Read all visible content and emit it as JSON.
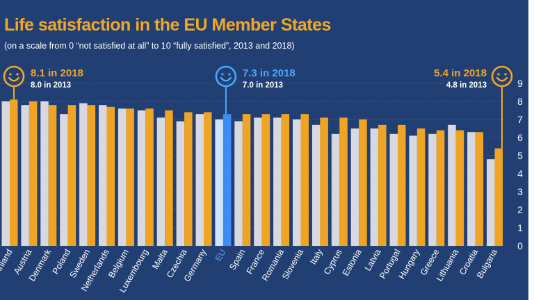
{
  "title": "Life satisfaction in the EU Member States",
  "subtitle": "(on a scale from 0 “not satisfied at all” to 10 “fully satisfied”, 2013 and 2018)",
  "colors": {
    "background": "#213f73",
    "bar_2013": "#d8d8e0",
    "bar_2018": "#f0a424",
    "eu_2013": "#d0e6ff",
    "eu_2018": "#3c8cf4",
    "highlight_text": "#f2a726",
    "eu_text": "#4da6ff"
  },
  "chart_data": {
    "type": "bar",
    "title": "Life satisfaction in the EU Member States",
    "subtitle": "(on a scale from 0 “not satisfied at all” to 10 “fully satisfied”, 2013 and 2018)",
    "xlabel": "",
    "ylabel": "",
    "ylim": [
      0,
      9
    ],
    "yticks": [
      0,
      1,
      2,
      3,
      4,
      5,
      6,
      7,
      8,
      9
    ],
    "grid": true,
    "categories": [
      "Finland",
      "Austria",
      "Denmark",
      "Poland",
      "Sweden",
      "Netherlands",
      "Belgium",
      "Luxembourg",
      "Malta",
      "Czechia",
      "Germany",
      "EU",
      "Spain",
      "France",
      "Romania",
      "Slovenia",
      "Italy",
      "Cyprus",
      "Estonia",
      "Latvia",
      "Portugal",
      "Hungary",
      "Greece",
      "Lithuania",
      "Croatia",
      "Bulgaria"
    ],
    "series": [
      {
        "name": "2013",
        "values": [
          8.0,
          7.8,
          8.0,
          7.3,
          7.9,
          7.8,
          7.6,
          7.5,
          7.1,
          6.9,
          7.3,
          7.0,
          6.9,
          7.1,
          7.1,
          7.0,
          6.7,
          6.2,
          6.5,
          6.5,
          6.2,
          6.1,
          6.2,
          6.7,
          6.3,
          4.8
        ]
      },
      {
        "name": "2018",
        "values": [
          8.1,
          8.0,
          7.8,
          7.8,
          7.8,
          7.7,
          7.6,
          7.6,
          7.5,
          7.4,
          7.4,
          7.3,
          7.3,
          7.3,
          7.3,
          7.3,
          7.1,
          7.1,
          7.0,
          6.7,
          6.7,
          6.5,
          6.4,
          6.4,
          6.3,
          5.4
        ]
      }
    ],
    "annotations": [
      {
        "category": "Finland",
        "label": "8.1 in 2018",
        "sublabel": "8.0 in 2013"
      },
      {
        "category": "EU",
        "label": "7.3 in 2018",
        "sublabel": "7.0 in 2013"
      },
      {
        "category": "Bulgaria",
        "label": "5.4 in 2018",
        "sublabel": "4.8 in 2013"
      }
    ]
  }
}
